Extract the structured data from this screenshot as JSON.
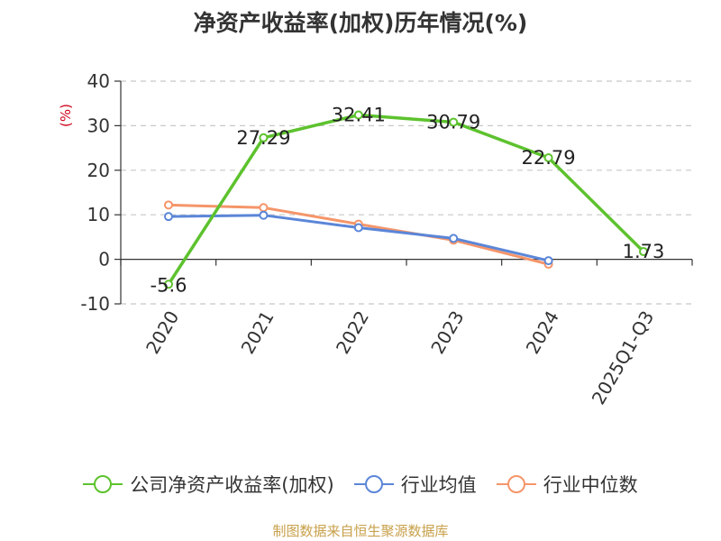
{
  "title": "净资产收益率(加权)历年情况(%)",
  "source": "制图数据来自恒生聚源数据库",
  "chart_data": {
    "type": "line",
    "title": "净资产收益率(加权)历年情况(%)",
    "ylabel": "(%)",
    "ylim": [
      -10,
      40
    ],
    "yticks": [
      40,
      30,
      20,
      10,
      0,
      -10
    ],
    "categories": [
      "2020",
      "2021",
      "2022",
      "2023",
      "2024",
      "2025Q1-Q3"
    ],
    "grid": true,
    "legend_position": "bottom",
    "series": [
      {
        "name": "公司净资产收益率(加权)",
        "color": "#5dc22e",
        "values": [
          -5.6,
          27.29,
          32.41,
          30.79,
          22.79,
          1.73
        ],
        "labels": [
          "-5.6",
          "27.29",
          "32.41",
          "30.79",
          "22.79",
          "1.73"
        ]
      },
      {
        "name": "行业均值",
        "color": "#5b86d8",
        "values": [
          9.6,
          9.9,
          7.1,
          4.7,
          -0.3,
          null
        ]
      },
      {
        "name": "行业中位数",
        "color": "#f5956a",
        "values": [
          12.2,
          11.6,
          7.9,
          4.3,
          -1.1,
          null
        ]
      }
    ]
  }
}
